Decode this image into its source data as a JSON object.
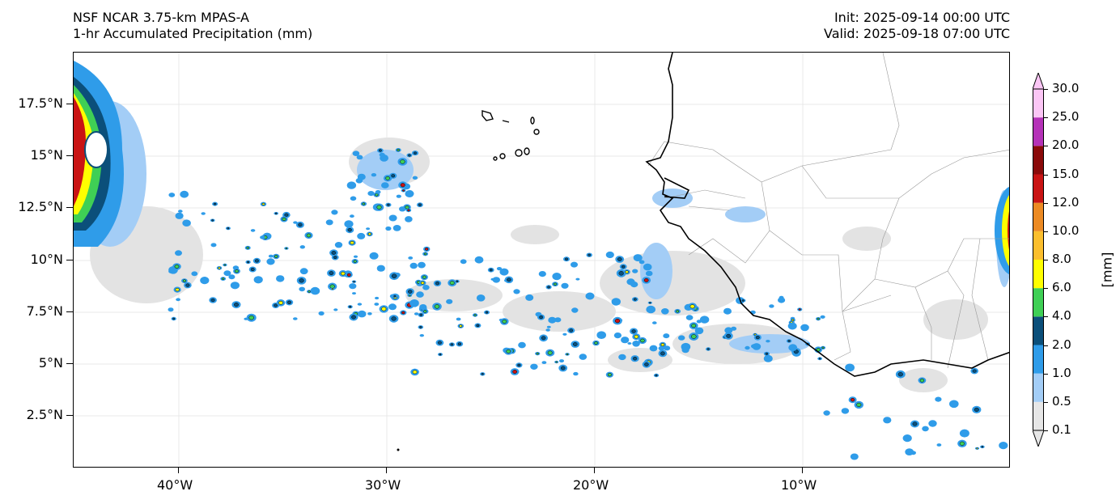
{
  "header": {
    "model": "NSF NCAR 3.75-km MPAS-A",
    "field": "1-hr Accumulated Precipitation (mm)",
    "init": "Init: 2025-09-14 00:00 UTC",
    "valid": "Valid: 2025-09-18 07:00 UTC"
  },
  "axes": {
    "y_labels": [
      "17.5°N",
      "15°N",
      "12.5°N",
      "10°N",
      "7.5°N",
      "5°N",
      "2.5°N"
    ],
    "y_values": [
      17.5,
      15,
      12.5,
      10,
      7.5,
      5,
      2.5
    ],
    "x_labels": [
      "40°W",
      "30°W",
      "20°W",
      "10°W"
    ],
    "x_values": [
      -40,
      -30,
      -20,
      -10
    ],
    "lon_range": [
      -45,
      0
    ],
    "lat_range": [
      0,
      20
    ]
  },
  "colorbar": {
    "unit": "[mm]",
    "levels": [
      "0.1",
      "0.5",
      "1.0",
      "2.0",
      "4.0",
      "6.0",
      "8.0",
      "10.0",
      "12.0",
      "15.0",
      "20.0",
      "25.0",
      "30.0"
    ],
    "colors": [
      "#e6e6e6",
      "#a3cdf6",
      "#2f9ce9",
      "#0b4f7a",
      "#3fcf55",
      "#ffff00",
      "#fbbe2d",
      "#ec8a23",
      "#c91414",
      "#8a0a0a",
      "#b532b8",
      "#fbc6f5"
    ]
  }
}
